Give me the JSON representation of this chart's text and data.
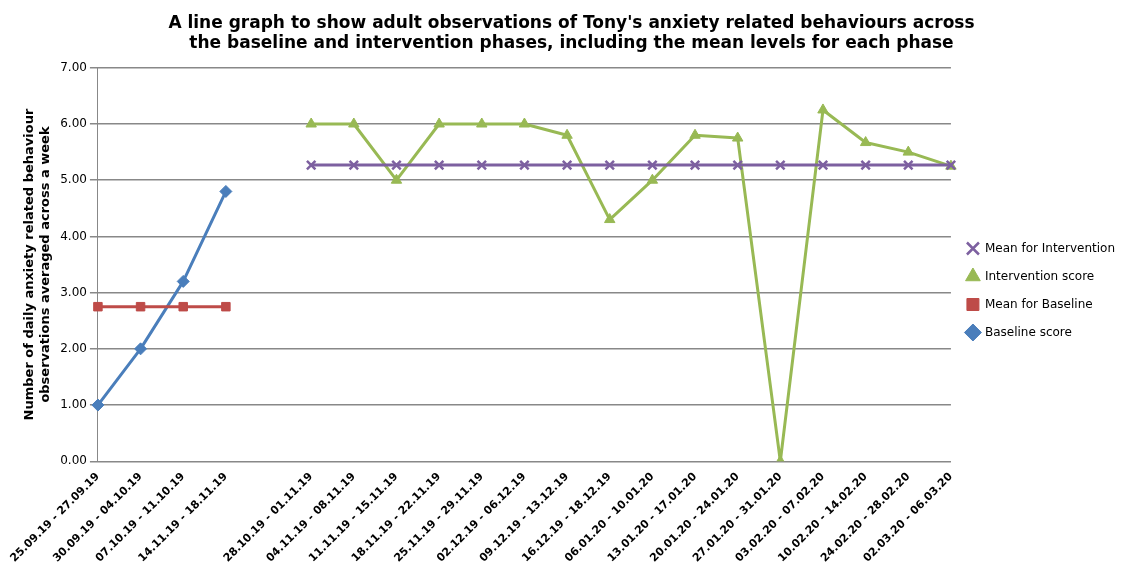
{
  "chart_data": {
    "type": "line",
    "title": "A line graph to show adult observations of Tony's anxiety related behaviours across the baseline and intervention phases, including the mean levels for each phase",
    "ylabel": "Number of daily anxiety related behaviour observations averaged across a week",
    "categories": [
      "25.09.19 - 27.09.19",
      "30.09.19 - 04.10.19",
      "07.10.19 - 11.10.19",
      "14.11.19 - 18.11.19",
      null,
      "28.10.19 - 01.11.19",
      "04.11.19 - 08.11.19",
      "11.11.19 - 15.11.19",
      "18.11.19 - 22.11.19",
      "25.11.19 - 29.11.19",
      "02.12.19 - 06.12.19",
      "09.12.19 - 13.12.19",
      "16.12.19 - 18.12.19",
      "06.01.20 - 10.01.20",
      "13.01.20 - 17.01.20",
      "20.01.20 - 24.01.20",
      "27.01.20 - 31.01.20",
      "03.02.20 - 07.02.20",
      "10.02.20 - 14.02.20",
      "24.02.20 - 28.02.20",
      "02.03.20 - 06.03.20"
    ],
    "series": [
      {
        "name": "Baseline score",
        "color": "#4a7ebb",
        "marker": "diamond",
        "values": [
          1,
          2,
          3.2,
          4.8,
          null,
          null,
          null,
          null,
          null,
          null,
          null,
          null,
          null,
          null,
          null,
          null,
          null,
          null,
          null,
          null,
          null
        ]
      },
      {
        "name": "Mean for Baseline",
        "color": "#be4b48",
        "marker": "square",
        "values": [
          2.75,
          2.75,
          2.75,
          2.75,
          null,
          null,
          null,
          null,
          null,
          null,
          null,
          null,
          null,
          null,
          null,
          null,
          null,
          null,
          null,
          null,
          null
        ]
      },
      {
        "name": "Intervention score",
        "color": "#98b954",
        "marker": "triangle",
        "values": [
          null,
          null,
          null,
          null,
          null,
          6,
          6,
          5,
          6,
          6,
          6,
          5.8,
          4.3,
          5,
          5.8,
          5.75,
          0,
          6.25,
          5.67,
          5.5,
          5.25
        ]
      },
      {
        "name": "Mean for Intervention",
        "color": "#7d60a0",
        "marker": "cross",
        "values": [
          null,
          null,
          null,
          null,
          null,
          5.27,
          5.27,
          5.27,
          5.27,
          5.27,
          5.27,
          5.27,
          5.27,
          5.27,
          5.27,
          5.27,
          5.27,
          5.27,
          5.27,
          5.27,
          5.27
        ]
      }
    ],
    "ylim": [
      0,
      7
    ],
    "yticks": [
      {
        "value": 0,
        "label": "0.00"
      },
      {
        "value": 1,
        "label": "1.00"
      },
      {
        "value": 2,
        "label": "2.00"
      },
      {
        "value": 3,
        "label": "3.00"
      },
      {
        "value": 4,
        "label": "4.00"
      },
      {
        "value": 5,
        "label": "5.00"
      },
      {
        "value": 6,
        "label": "6.00"
      },
      {
        "value": 7,
        "label": "7.00"
      }
    ],
    "grid": "y",
    "legend": "right",
    "line_style": "solid"
  }
}
